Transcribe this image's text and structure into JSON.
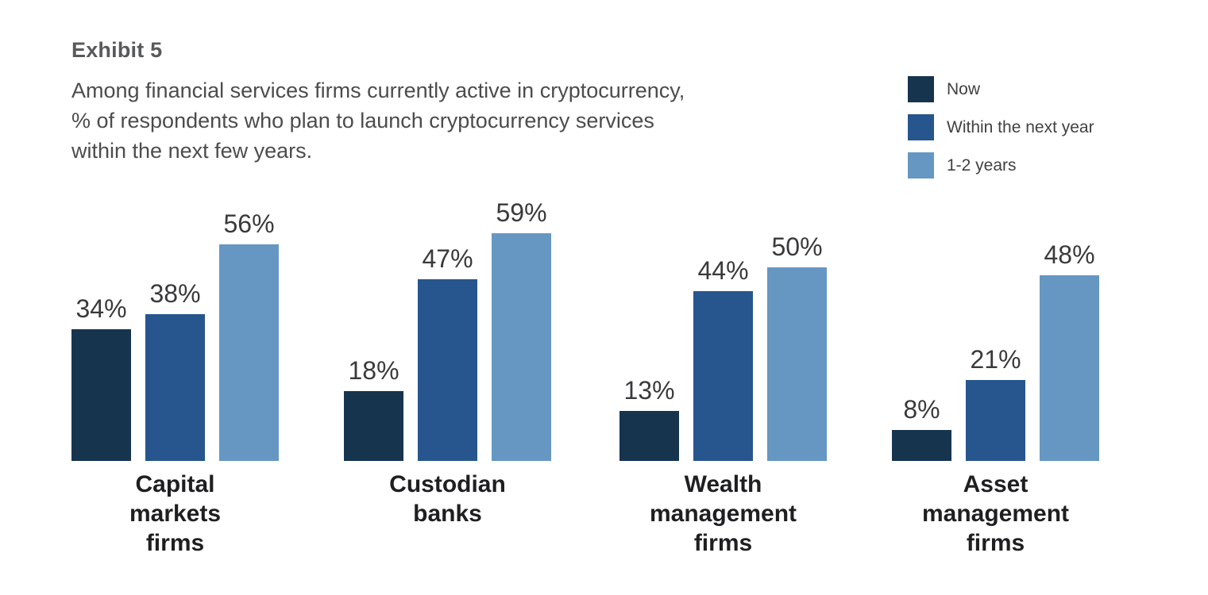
{
  "header": {
    "exhibit_label": "Exhibit 5",
    "subtitle": "Among financial services firms currently active in cryptocurrency,\n% of respondents who plan to launch cryptocurrency services\nwithin the next few years."
  },
  "legend": {
    "position": "top-right",
    "items": [
      {
        "label": "Now",
        "color": "#17344f"
      },
      {
        "label": "Within the next year",
        "color": "#27558e"
      },
      {
        "label": "1-2 years",
        "color": "#6697c3"
      }
    ]
  },
  "chart_data": {
    "type": "bar",
    "title": "Exhibit 5",
    "subtitle": "Among financial services firms currently active in cryptocurrency, % of respondents who plan to launch cryptocurrency services within the next few years.",
    "unit": "%",
    "grid": false,
    "axes_shown": false,
    "value_labels_shown": true,
    "ylim": [
      0,
      60
    ],
    "categories": [
      "Capital markets firms",
      "Custodian banks",
      "Wealth management firms",
      "Asset management firms"
    ],
    "category_display": [
      "Capital\nmarkets\nfirms",
      "Custodian\nbanks",
      "Wealth\nmanagement\nfirms",
      "Asset\nmanagement\nfirms"
    ],
    "series": [
      {
        "name": "Now",
        "color": "#17344f",
        "values": [
          34,
          18,
          13,
          8
        ]
      },
      {
        "name": "Within the next year",
        "color": "#27558e",
        "values": [
          38,
          47,
          44,
          21
        ]
      },
      {
        "name": "1-2 years",
        "color": "#6697c3",
        "values": [
          56,
          59,
          50,
          48
        ]
      }
    ],
    "value_label_format": "{v}%"
  }
}
